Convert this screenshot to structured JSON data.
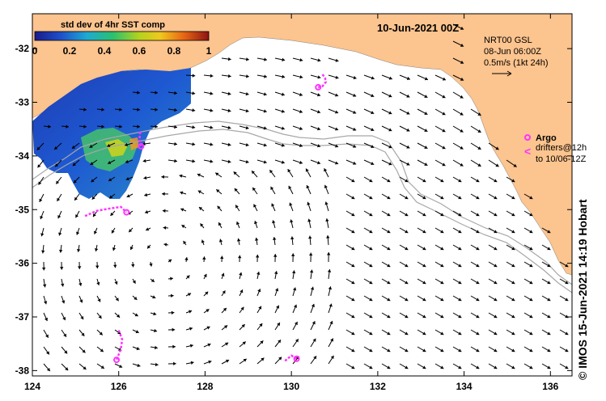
{
  "map": {
    "title": "10-Jun-2021 00Z",
    "lon_ticks": [
      "124",
      "126",
      "128",
      "130",
      "132",
      "134",
      "136"
    ],
    "lat_ticks": [
      "-32",
      "-33",
      "-34",
      "-35",
      "-36",
      "-37",
      "-38"
    ],
    "lon_range": [
      124,
      136.5
    ],
    "lat_range": [
      -38.1,
      -31.35
    ],
    "colors": {
      "land": "#fcc48e",
      "ocean": "#ffffff",
      "argo": "#ff33ff",
      "arrow": "#000000",
      "isobath": "#a8a8a8"
    }
  },
  "colorbar": {
    "title": "std dev of 4hr SST comp",
    "ticks": [
      "0",
      "0.2",
      "0.4",
      "0.6",
      "0.8",
      "1"
    ],
    "colors": [
      "#1a1a8c",
      "#1e50c8",
      "#1eaad2",
      "#2bc06e",
      "#b4d21e",
      "#f0c81e",
      "#e66414",
      "#8c1414"
    ]
  },
  "current_legend": {
    "source": "NRT00 GSL",
    "date": "08-Jun 06:00Z",
    "scale": "0.5m/s (1kt 24h)"
  },
  "argo_legend": {
    "label": "Argo",
    "line1": "drifters@12h",
    "line2": "to 10/06-12Z"
  },
  "credit": "© IMOS 15-Jun-2021 14:19 Hobart",
  "drifter_tracks": [
    {
      "id": "drifter-1",
      "points": [
        [
          130.72,
          -32.48
        ],
        [
          130.78,
          -32.55
        ],
        [
          130.8,
          -32.62
        ],
        [
          130.72,
          -32.7
        ],
        [
          130.62,
          -32.72
        ]
      ]
    },
    {
      "id": "drifter-2",
      "points": [
        [
          125.22,
          -35.12
        ],
        [
          125.5,
          -35.02
        ],
        [
          125.8,
          -34.98
        ],
        [
          126.05,
          -34.95
        ],
        [
          126.18,
          -35.05
        ]
      ]
    },
    {
      "id": "drifter-3",
      "points": [
        [
          126.0,
          -37.25
        ],
        [
          126.08,
          -37.42
        ],
        [
          126.05,
          -37.6
        ],
        [
          125.95,
          -37.8
        ]
      ]
    },
    {
      "id": "drifter-4",
      "points": [
        [
          129.85,
          -37.82
        ],
        [
          130.0,
          -37.72
        ],
        [
          130.12,
          -37.78
        ]
      ]
    },
    {
      "id": "drifter-5",
      "points": [
        [
          126.5,
          -33.55
        ],
        [
          126.48,
          -33.7
        ],
        [
          126.52,
          -33.82
        ]
      ]
    }
  ]
}
